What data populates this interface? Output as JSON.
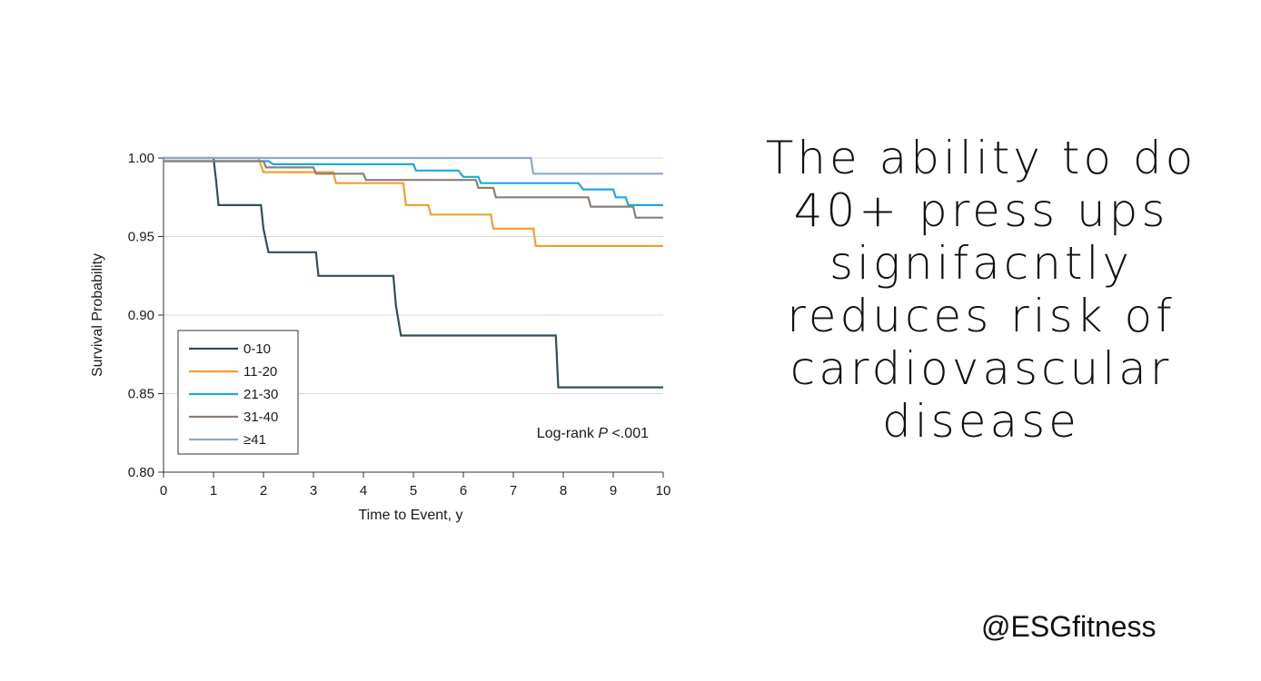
{
  "headline": {
    "lines": [
      "The ability to do",
      "40+ press ups",
      "signifacntly",
      "reduces risk of",
      "cardiovascular",
      "disease"
    ]
  },
  "handle": "@ESGfitness",
  "chart_data": {
    "type": "line",
    "step": true,
    "xlabel": "Time to Event, y",
    "ylabel": "Survival Probability",
    "xlim": [
      0,
      10
    ],
    "ylim": [
      0.8,
      1.0
    ],
    "xticks": [
      "0",
      "1",
      "2",
      "3",
      "4",
      "5",
      "6",
      "7",
      "8",
      "9",
      "10"
    ],
    "yticks": [
      "0.80",
      "0.85",
      "0.90",
      "0.95",
      "1.00"
    ],
    "grid": true,
    "legend_position": "bottom-left",
    "annotation": {
      "prefix": "Log-rank ",
      "italic": "P",
      "suffix": " <.001"
    },
    "series": [
      {
        "name": "0-10",
        "color": "#2f4f5a",
        "points": [
          [
            0,
            1.0
          ],
          [
            1.0,
            1.0
          ],
          [
            1.05,
            0.986
          ],
          [
            1.1,
            0.97
          ],
          [
            1.95,
            0.97
          ],
          [
            2.0,
            0.955
          ],
          [
            2.1,
            0.94
          ],
          [
            3.05,
            0.94
          ],
          [
            3.1,
            0.925
          ],
          [
            4.6,
            0.925
          ],
          [
            4.65,
            0.906
          ],
          [
            4.75,
            0.887
          ],
          [
            7.85,
            0.887
          ],
          [
            7.9,
            0.854
          ],
          [
            10,
            0.854
          ]
        ]
      },
      {
        "name": "11-20",
        "color": "#f0a030",
        "points": [
          [
            0,
            1.0
          ],
          [
            1.9,
            1.0
          ],
          [
            2.0,
            0.991
          ],
          [
            3.4,
            0.991
          ],
          [
            3.45,
            0.984
          ],
          [
            4.8,
            0.984
          ],
          [
            4.85,
            0.97
          ],
          [
            5.3,
            0.97
          ],
          [
            5.35,
            0.964
          ],
          [
            6.55,
            0.964
          ],
          [
            6.6,
            0.955
          ],
          [
            7.4,
            0.955
          ],
          [
            7.45,
            0.944
          ],
          [
            10,
            0.944
          ]
        ]
      },
      {
        "name": "21-30",
        "color": "#1ea8e0",
        "points": [
          [
            0,
            0.998
          ],
          [
            2.1,
            0.998
          ],
          [
            2.2,
            0.996
          ],
          [
            5.0,
            0.996
          ],
          [
            5.05,
            0.992
          ],
          [
            5.9,
            0.992
          ],
          [
            6.0,
            0.988
          ],
          [
            6.3,
            0.988
          ],
          [
            6.35,
            0.984
          ],
          [
            8.3,
            0.984
          ],
          [
            8.4,
            0.98
          ],
          [
            9.0,
            0.98
          ],
          [
            9.05,
            0.975
          ],
          [
            9.25,
            0.975
          ],
          [
            9.3,
            0.97
          ],
          [
            10,
            0.97
          ]
        ]
      },
      {
        "name": "31-40",
        "color": "#8c7f78",
        "points": [
          [
            0,
            0.998
          ],
          [
            2.0,
            0.998
          ],
          [
            2.05,
            0.994
          ],
          [
            3.0,
            0.994
          ],
          [
            3.05,
            0.99
          ],
          [
            4.0,
            0.99
          ],
          [
            4.05,
            0.986
          ],
          [
            6.25,
            0.986
          ],
          [
            6.3,
            0.981
          ],
          [
            6.6,
            0.981
          ],
          [
            6.65,
            0.975
          ],
          [
            8.5,
            0.975
          ],
          [
            8.55,
            0.969
          ],
          [
            9.4,
            0.969
          ],
          [
            9.45,
            0.962
          ],
          [
            10,
            0.962
          ]
        ]
      },
      {
        "name": "≥41",
        "color": "#8fa8c8",
        "points": [
          [
            0,
            1.0
          ],
          [
            7.35,
            1.0
          ],
          [
            7.4,
            0.99
          ],
          [
            10,
            0.99
          ]
        ]
      }
    ]
  }
}
